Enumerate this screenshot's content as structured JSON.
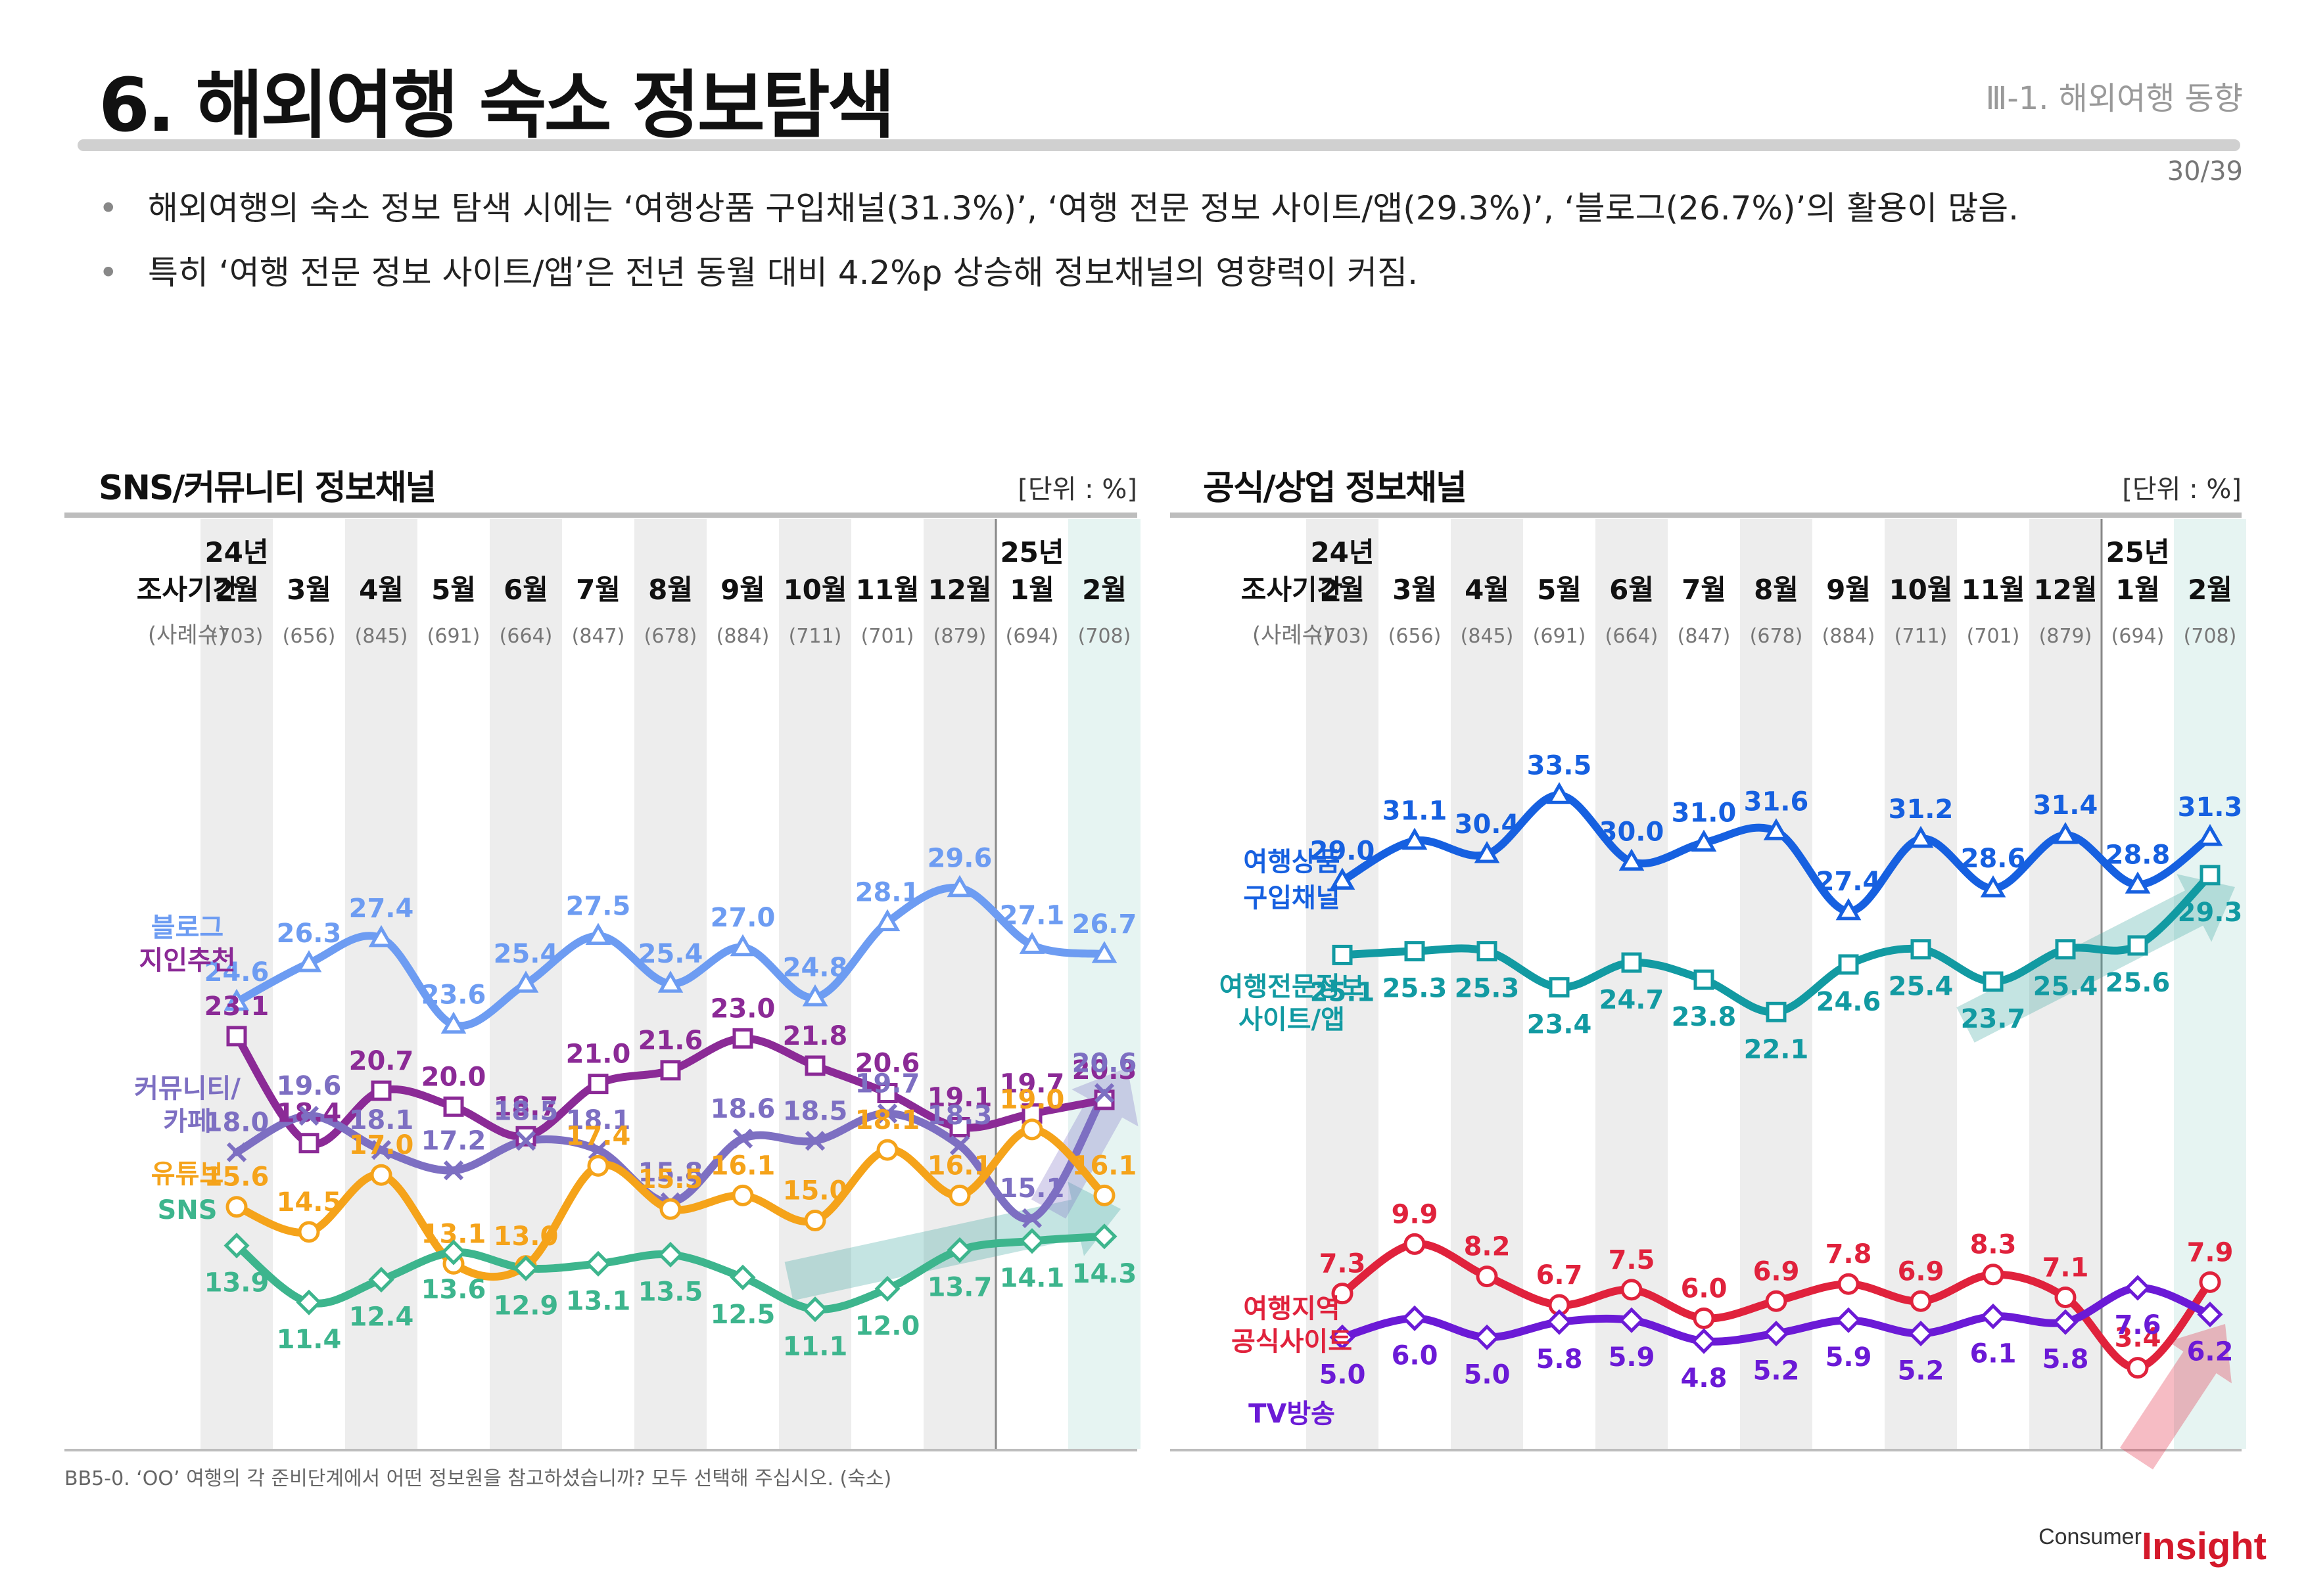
{
  "header": {
    "title": "6. 해외여행 숙소 정보탐색",
    "section": "Ⅲ-1. 해외여행 동향",
    "page": "30/39"
  },
  "bullets": [
    "해외여행의 숙소 정보 탐색 시에는 ‘여행상품 구입채널(31.3%)’, ‘여행 전문 정보 사이트/앱(29.3%)’, ‘블로그(26.7%)’의 활용이 많음.",
    "특히 ‘여행 전문 정보 사이트/앱’은 전년 동월 대비 4.2%p 상승해 정보채널의 영향력이 커짐."
  ],
  "footnote": "BB5-0. ‘OO’ 여행의 각 준비단계에서 어떤 정보원을 참고하셨습니까? 모두 선택해 주십시오. (숙소)",
  "logo": {
    "consumer": "Consumer",
    "insight": "Insight"
  },
  "chart_data": [
    {
      "type": "line",
      "title": "SNS/커뮤니티 정보채널",
      "unit": "[단위 : %]",
      "period_label": "조사기간",
      "sample_label": "(사례수)",
      "categories": [
        "2월",
        "3월",
        "4월",
        "5월",
        "6월",
        "7월",
        "8월",
        "9월",
        "10월",
        "11월",
        "12월",
        "1월",
        "2월"
      ],
      "year_marks": [
        {
          "index": 0,
          "label": "24년"
        },
        {
          "index": 11,
          "label": "25년"
        }
      ],
      "sample_sizes": [
        "(703)",
        "(656)",
        "(845)",
        "(691)",
        "(664)",
        "(847)",
        "(678)",
        "(884)",
        "(711)",
        "(701)",
        "(879)",
        "(694)",
        "(708)"
      ],
      "ylim": [
        8,
        36
      ],
      "series": [
        {
          "name": "블로그",
          "label_lines": [
            "블로그"
          ],
          "color": "#6d9cf2",
          "marker": "triangle",
          "values": [
            24.6,
            26.3,
            27.4,
            23.6,
            25.4,
            27.5,
            25.4,
            27.0,
            24.8,
            28.1,
            29.6,
            27.1,
            26.7
          ],
          "label_pos": "above"
        },
        {
          "name": "지인추천",
          "label_lines": [
            "지인추천"
          ],
          "color": "#8b2a96",
          "marker": "square",
          "values": [
            23.1,
            18.4,
            20.7,
            20.0,
            18.7,
            21.0,
            21.6,
            23.0,
            21.8,
            20.6,
            19.1,
            19.7,
            20.3
          ],
          "label_pos": "above"
        },
        {
          "name": "커뮤니티/카페",
          "label_lines": [
            "커뮤니티/",
            "카페"
          ],
          "color": "#7d6fc2",
          "marker": "x",
          "values": [
            18.0,
            19.6,
            18.1,
            17.2,
            18.5,
            18.1,
            15.8,
            18.6,
            18.5,
            19.7,
            18.3,
            15.1,
            20.6
          ],
          "label_pos": "above"
        },
        {
          "name": "유튜브",
          "label_lines": [
            "유튜브"
          ],
          "color": "#f5a31a",
          "marker": "circle",
          "values": [
            15.6,
            14.5,
            17.0,
            13.1,
            13.0,
            17.4,
            15.5,
            16.1,
            15.0,
            18.1,
            16.1,
            19.0,
            16.1
          ],
          "label_pos": "above"
        },
        {
          "name": "SNS",
          "label_lines": [
            "SNS"
          ],
          "color": "#3db58d",
          "marker": "diamond",
          "values": [
            13.9,
            11.4,
            12.4,
            13.6,
            12.9,
            13.1,
            13.5,
            12.5,
            11.1,
            12.0,
            13.7,
            14.1,
            14.3
          ],
          "label_pos": "below"
        }
      ]
    },
    {
      "type": "line",
      "title": "공식/상업 정보채널",
      "unit": "[단위 : %]",
      "period_label": "조사기간",
      "sample_label": "(사례수)",
      "categories": [
        "2월",
        "3월",
        "4월",
        "5월",
        "6월",
        "7월",
        "8월",
        "9월",
        "10월",
        "11월",
        "12월",
        "1월",
        "2월"
      ],
      "year_marks": [
        {
          "index": 0,
          "label": "24년"
        },
        {
          "index": 11,
          "label": "25년"
        }
      ],
      "sample_sizes": [
        "(703)",
        "(656)",
        "(845)",
        "(691)",
        "(664)",
        "(847)",
        "(678)",
        "(884)",
        "(711)",
        "(701)",
        "(879)",
        "(694)",
        "(708)"
      ],
      "ylim": [
        0,
        38
      ],
      "series": [
        {
          "name": "여행상품 구입채널",
          "label_lines": [
            "여행상품",
            "구입채널"
          ],
          "color": "#1660e0",
          "marker": "triangle",
          "values": [
            29.0,
            31.1,
            30.4,
            33.5,
            30.0,
            31.0,
            31.6,
            27.4,
            31.2,
            28.6,
            31.4,
            28.8,
            31.3
          ],
          "label_pos": "above"
        },
        {
          "name": "여행전문정보 사이트/앱",
          "label_lines": [
            "여행전문정보",
            "사이트/앱"
          ],
          "color": "#129aa2",
          "marker": "square",
          "values": [
            25.1,
            25.3,
            25.3,
            23.4,
            24.7,
            23.8,
            22.1,
            24.6,
            25.4,
            23.7,
            25.4,
            25.6,
            29.3
          ],
          "label_pos": "below"
        },
        {
          "name": "여행지역 공식사이트",
          "label_lines": [
            "여행지역",
            "공식사이트"
          ],
          "color": "#e0223c",
          "marker": "circle",
          "values": [
            7.3,
            9.9,
            8.2,
            6.7,
            7.5,
            6.0,
            6.9,
            7.8,
            6.9,
            8.3,
            7.1,
            3.4,
            7.9
          ],
          "label_pos": "above"
        },
        {
          "name": "TV방송",
          "label_lines": [
            "TV방송"
          ],
          "color": "#6b1ad6",
          "marker": "diamond",
          "values": [
            5.0,
            6.0,
            5.0,
            5.8,
            5.9,
            4.8,
            5.2,
            5.9,
            5.2,
            6.1,
            5.8,
            7.6,
            6.2
          ],
          "label_pos": "below"
        }
      ]
    }
  ]
}
